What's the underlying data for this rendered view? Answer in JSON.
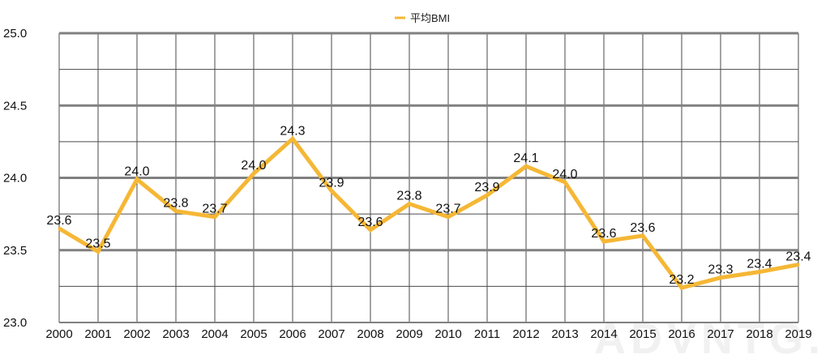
{
  "chart_data": {
    "type": "line",
    "title": "",
    "xlabel": "",
    "ylabel": "",
    "categories": [
      "2000",
      "2001",
      "2002",
      "2003",
      "2004",
      "2005",
      "2006",
      "2007",
      "2008",
      "2009",
      "2010",
      "2011",
      "2012",
      "2013",
      "2014",
      "2015",
      "2016",
      "2017",
      "2018",
      "2019"
    ],
    "series": [
      {
        "name": "平均BMI",
        "values": [
          23.65,
          23.49,
          23.99,
          23.77,
          23.73,
          24.03,
          24.27,
          23.91,
          23.64,
          23.82,
          23.73,
          23.88,
          24.08,
          23.97,
          23.56,
          23.6,
          23.24,
          23.31,
          23.35,
          23.4
        ],
        "labels": [
          "23.6",
          "23.5",
          "24.0",
          "23.8",
          "23.7",
          "24.0",
          "24.3",
          "23.9",
          "23.6",
          "23.8",
          "23.7",
          "23.9",
          "24.1",
          "24.0",
          "23.6",
          "23.6",
          "23.2",
          "23.3",
          "23.4",
          "23.4"
        ],
        "color": "#f5b735"
      }
    ],
    "ylim": [
      23.0,
      25.0
    ],
    "yticks": [
      "23.0",
      "23.5",
      "24.0",
      "24.5",
      "25.0"
    ],
    "grid": true,
    "legend_position": "top-center",
    "watermark": "ADVNTG."
  },
  "colors": {
    "major_grid": "#808080",
    "minor_grid": "#4a4a4a",
    "line": "#f5b735"
  }
}
